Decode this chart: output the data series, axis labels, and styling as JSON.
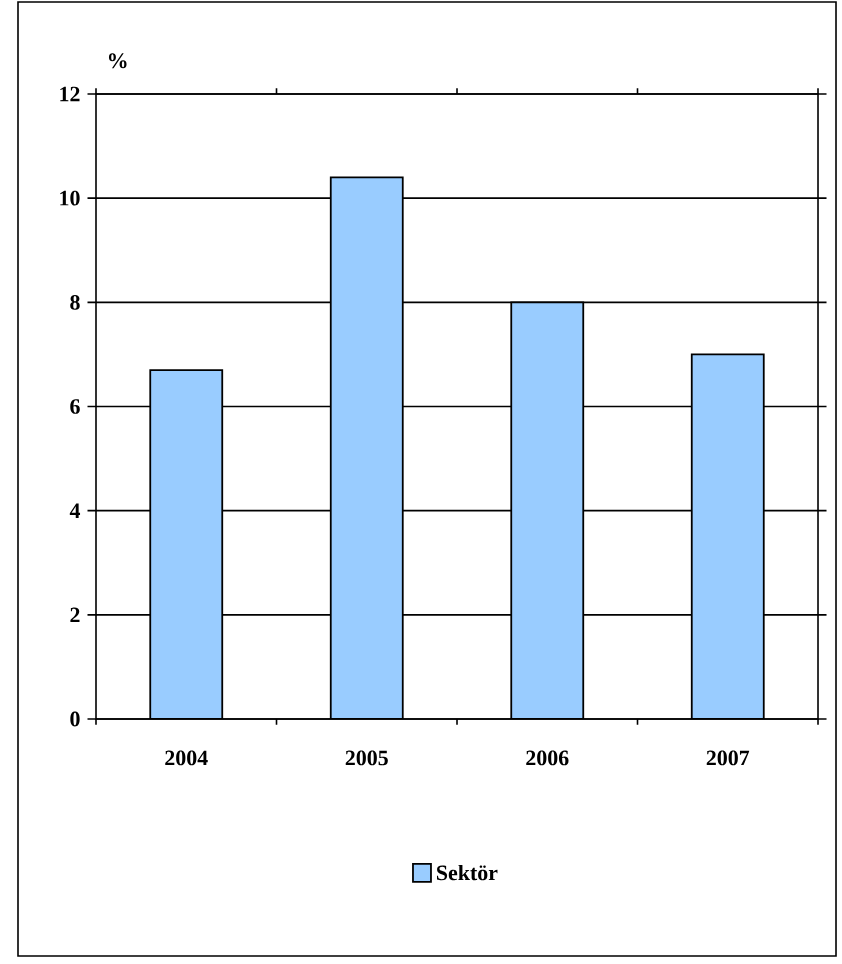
{
  "chart_data": {
    "type": "bar",
    "ylabel": "%",
    "categories": [
      "2004",
      "2005",
      "2006",
      "2007"
    ],
    "series": [
      {
        "name": "Sektör",
        "color": "#99ccff",
        "values": [
          6.7,
          10.4,
          8.0,
          7.0
        ]
      }
    ],
    "ylim": [
      0,
      12
    ],
    "yticks": [
      0,
      2,
      4,
      6,
      8,
      10,
      12
    ],
    "grid": "y",
    "legend": "bottom"
  }
}
